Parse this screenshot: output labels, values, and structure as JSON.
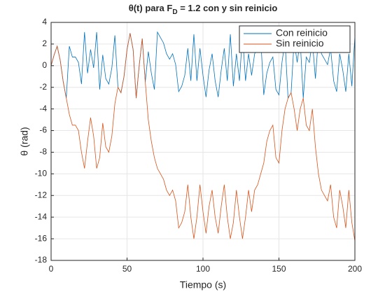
{
  "chart_data": {
    "type": "line",
    "title": [
      "θ(t) para F",
      "D",
      " = 1.2 con y sin reinicio"
    ],
    "x_label": "Tiempo (s)",
    "y_label": "θ (rad)",
    "xlim": [
      0,
      200
    ],
    "ylim": [
      -18,
      4
    ],
    "xticks": [
      0,
      50,
      100,
      150,
      200
    ],
    "yticks": [
      -18,
      -16,
      -14,
      -12,
      -10,
      -8,
      -6,
      -4,
      -2,
      0,
      2,
      4
    ],
    "grid": true,
    "legend": "upper right",
    "x": [
      0,
      2,
      4,
      6,
      8,
      10,
      12,
      14,
      16,
      18,
      20,
      22,
      24,
      26,
      28,
      30,
      32,
      34,
      36,
      38,
      40,
      42,
      44,
      46,
      48,
      50,
      52,
      54,
      56,
      58,
      60,
      62,
      64,
      66,
      68,
      70,
      72,
      74,
      76,
      78,
      80,
      82,
      84,
      86,
      88,
      90,
      92,
      94,
      96,
      98,
      100,
      102,
      104,
      106,
      108,
      110,
      112,
      114,
      116,
      118,
      120,
      122,
      124,
      126,
      128,
      130,
      132,
      134,
      136,
      138,
      140,
      142,
      144,
      146,
      148,
      150,
      152,
      154,
      156,
      158,
      160,
      162,
      164,
      166,
      168,
      170,
      172,
      174,
      176,
      178,
      180,
      182,
      184,
      186,
      188,
      190,
      192,
      194,
      196,
      198,
      200
    ],
    "series": [
      {
        "name": "Con reinicio",
        "color": "#0072bd",
        "values": [
          0,
          1,
          1.8,
          0.5,
          -1.5,
          -3,
          1.8,
          0.8,
          0.8,
          0.3,
          -1.7,
          3.1,
          -0.7,
          1.5,
          -0.2,
          3.1,
          -2.2,
          1,
          -1.2,
          -1.7,
          -0.2,
          2.8,
          -2,
          -2.5,
          -1,
          1.5,
          3,
          1.5,
          -3,
          0,
          2.5,
          -1.5,
          1.3,
          -0.7,
          -2.2,
          3.1,
          2.6,
          2.1,
          1.1,
          0.6,
          1.1,
          0.1,
          -2.4,
          -1.9,
          -0.9,
          1.6,
          -1.4,
          2.9,
          -1.4,
          1.6,
          -0.9,
          -2.9,
          -0.4,
          1.1,
          -1.4,
          -2.9,
          -0.4,
          1.6,
          -1.4,
          2.9,
          -1.9,
          1.1,
          -1.4,
          2.9,
          -1.4,
          1.1,
          -0.9,
          1.1,
          1.6,
          2.6,
          -2.7,
          -0.7,
          0.3,
          0.8,
          -2.2,
          -2.7,
          0.3,
          2.3,
          -3,
          -2.5,
          2.3,
          0.3,
          2.3,
          -3,
          0.8,
          0.3,
          2.3,
          -1.2,
          2.6,
          1.1,
          0.6,
          0.1,
          1.6,
          -1.4,
          -2.4,
          1.1,
          -0.4,
          -2.4,
          1.1,
          -1.9,
          2.7
        ]
      },
      {
        "name": "Sin reinicio",
        "color": "#d95319",
        "values": [
          0,
          1,
          1.8,
          0.5,
          -1.5,
          -3,
          -4.5,
          -5.5,
          -5.5,
          -6,
          -8,
          -9.5,
          -7,
          -4.8,
          -6.5,
          -9.5,
          -8.5,
          -5.3,
          -7.5,
          -8,
          -6.5,
          -3.5,
          -2,
          -2.5,
          -1,
          1.5,
          3,
          1.5,
          -3,
          0,
          2.5,
          -1.5,
          -5,
          -7,
          -8.5,
          -9.5,
          -10,
          -10.5,
          -11.5,
          -12,
          -11.5,
          -12.5,
          -15,
          -14.5,
          -13.5,
          -11,
          -14,
          -16,
          -14,
          -11,
          -13.5,
          -15.5,
          -13,
          -11.5,
          -14,
          -15.5,
          -13,
          -11,
          -14,
          -16,
          -14.5,
          -11.5,
          -14,
          -16,
          -14,
          -11.5,
          -13.5,
          -11.5,
          -11,
          -10,
          -9,
          -7,
          -6,
          -5.5,
          -8.5,
          -9,
          -6,
          -4,
          -3,
          -2.5,
          -4,
          -6,
          -4,
          -3,
          -5.5,
          -6,
          -4,
          -7.5,
          -10,
          -11.5,
          -12,
          -12.5,
          -11,
          -14,
          -15,
          -11.5,
          -13,
          -15,
          -11.5,
          -14.5,
          -16.2
        ]
      }
    ]
  }
}
